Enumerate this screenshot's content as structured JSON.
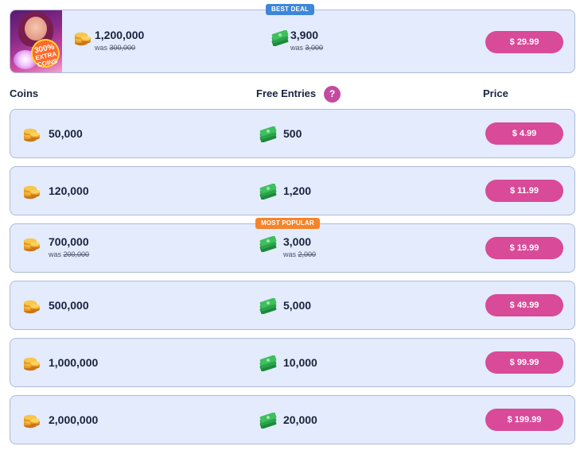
{
  "best_deal": {
    "tag": "BEST DEAL",
    "promo_badge": [
      "300%",
      "EXTRA",
      "COINS"
    ],
    "coins": "1,200,000",
    "coins_was_label": "was",
    "coins_was": "300,000",
    "entries": "3,900",
    "entries_was_label": "was",
    "entries_was": "3,000",
    "price": "$ 29.99"
  },
  "headers": {
    "coins": "Coins",
    "entries": "Free Entries",
    "help": "?",
    "price": "Price"
  },
  "packages": [
    {
      "coins": "50,000",
      "entries": "500",
      "price": "$ 4.99"
    },
    {
      "coins": "120,000",
      "entries": "1,200",
      "price": "$ 11.99"
    },
    {
      "tag": "MOST POPULAR",
      "coins": "700,000",
      "coins_was_label": "was",
      "coins_was": "200,000",
      "entries": "3,000",
      "entries_was_label": "was",
      "entries_was": "2,000",
      "price": "$ 19.99"
    },
    {
      "coins": "500,000",
      "entries": "5,000",
      "price": "$ 49.99"
    },
    {
      "coins": "1,000,000",
      "entries": "10,000",
      "price": "$ 99.99"
    },
    {
      "coins": "2,000,000",
      "entries": "20,000",
      "price": "$ 199.99"
    }
  ],
  "icons": {
    "coin": "coin-stack-icon",
    "entries": "cash-stack-icon",
    "help": "question-icon"
  },
  "colors": {
    "card_bg": "#e3ebfc",
    "price_button": "#d94a98",
    "best_deal_tag": "#3d86d9",
    "popular_tag": "#f5842a",
    "help_badge": "#c44aa0"
  }
}
